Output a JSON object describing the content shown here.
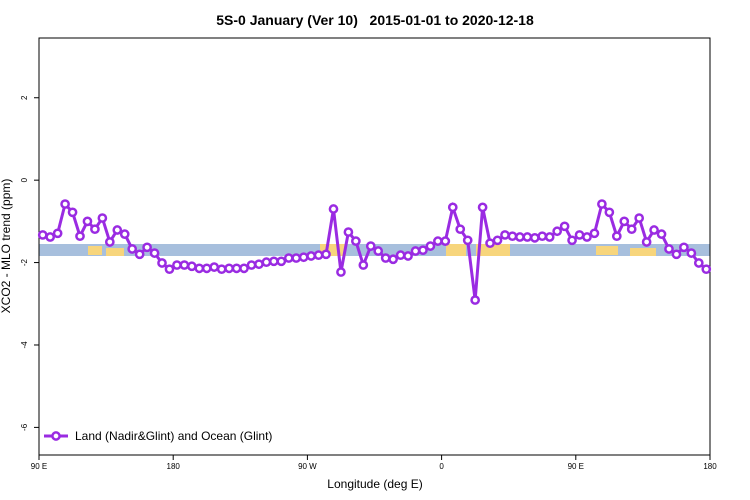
{
  "chart_data": {
    "type": "line",
    "title": "5S-0 January (Ver 10)   2015-01-01 to 2020-12-18",
    "x_label": "Longitude (deg E)",
    "y_label": "XCO2 - MLO trend (ppm)",
    "xlim": [
      90,
      540
    ],
    "xticks": [
      {
        "value": 90,
        "label": "90 E"
      },
      180,
      {
        "value": 270,
        "label": "90 W"
      },
      {
        "value": 360,
        "label": "0"
      },
      {
        "value": 450,
        "label": "90 E"
      },
      {
        "value": 540,
        "label": "180"
      }
    ],
    "ylim": [
      -6.67,
      3.45
    ],
    "yticks": [
      -6,
      -4,
      -2,
      0,
      2
    ],
    "legend": "bottom-left",
    "x": [
      92.5,
      97.5,
      102.5,
      107.5,
      112.5,
      117.5,
      122.5,
      127.5,
      132.5,
      137.5,
      142.5,
      147.5,
      152.5,
      157.5,
      162.5,
      167.5,
      172.5,
      177.5,
      182.5,
      187.5,
      192.5,
      197.5,
      202.5,
      207.5,
      212.5,
      217.5,
      222.5,
      227.5,
      232.5,
      237.5,
      242.5,
      247.5,
      252.5,
      257.5,
      262.5,
      267.5,
      272.5,
      277.5,
      282.5,
      287.5,
      292.5,
      297.5,
      302.5,
      307.5,
      312.5,
      317.5,
      322.5,
      327.5,
      332.5,
      337.5,
      342.5,
      347.5,
      352.5,
      357.5,
      362.5,
      367.5,
      372.5,
      377.5,
      382.5,
      387.5,
      392.5,
      397.5,
      402.5,
      407.5,
      412.5,
      417.5,
      422.5,
      427.5,
      432.5,
      437.5,
      442.5,
      447.5,
      452.5,
      457.5,
      462.5,
      467.5,
      472.5,
      477.5,
      482.5,
      487.5,
      492.5,
      497.5,
      502.5,
      507.5,
      512.5,
      517.5,
      522.5,
      527.5,
      532.5,
      537.5
    ],
    "series": [
      {
        "name": "Land (Nadir&Glint) and Ocean (Glint)",
        "color": "#9a2be2",
        "values": [
          -1.33,
          -1.38,
          -1.29,
          -0.58,
          -0.78,
          -1.36,
          -1.0,
          -1.19,
          -0.92,
          -1.5,
          -1.21,
          -1.31,
          -1.67,
          -1.8,
          -1.63,
          -1.77,
          -2.01,
          -2.16,
          -2.06,
          -2.06,
          -2.09,
          -2.14,
          -2.14,
          -2.11,
          -2.16,
          -2.14,
          -2.14,
          -2.14,
          -2.06,
          -2.04,
          -1.99,
          -1.97,
          -1.97,
          -1.89,
          -1.89,
          -1.87,
          -1.84,
          -1.82,
          -1.8,
          -0.7,
          -2.23,
          -1.26,
          -1.48,
          -2.06,
          -1.6,
          -1.72,
          -1.89,
          -1.92,
          -1.82,
          -1.84,
          -1.72,
          -1.7,
          -1.6,
          -1.48,
          -1.48,
          -0.66,
          -1.19,
          -1.46,
          -2.91,
          -0.66,
          -1.53,
          -1.46,
          -1.33,
          -1.36,
          -1.38,
          -1.38,
          -1.4,
          -1.36,
          -1.38,
          -1.24,
          -1.12,
          -1.46,
          -1.33,
          -1.38,
          -1.29,
          -0.58,
          -0.78,
          -1.36,
          -1.0,
          -1.19,
          -0.92,
          -1.5,
          -1.21,
          -1.31,
          -1.67,
          -1.8,
          -1.63,
          -1.77,
          -2.01,
          -2.16
        ]
      }
    ]
  }
}
